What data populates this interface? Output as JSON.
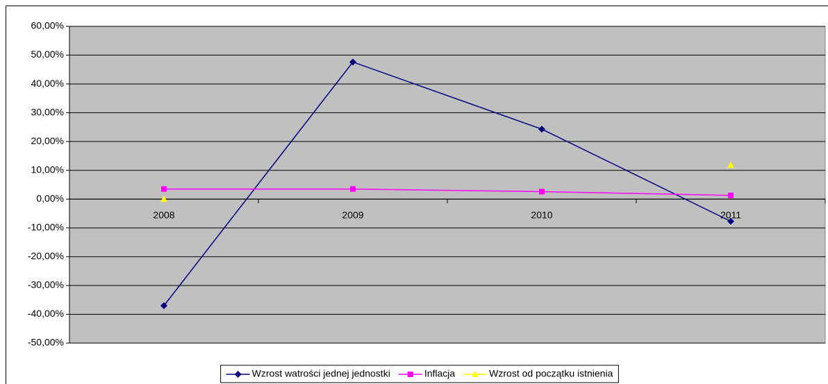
{
  "chart_data": {
    "type": "line",
    "categories": [
      "2008",
      "2009",
      "2010",
      "2011"
    ],
    "series": [
      {
        "name": "Wzrost watrości jednej jednostki",
        "color": "#000080",
        "marker": "diamond",
        "values": [
          -37,
          47.6,
          24.3,
          -7.7
        ]
      },
      {
        "name": "Inflacja",
        "color": "#ff00ff",
        "marker": "square",
        "values": [
          3.5,
          3.5,
          2.6,
          1.3
        ]
      },
      {
        "name": "Wzrost od początku istnienia",
        "color": "#ffff00",
        "marker": "triangle",
        "values": [
          0,
          null,
          null,
          11.8
        ]
      }
    ],
    "ylim": [
      -50,
      60
    ],
    "yticks": [
      {
        "value": -50,
        "label": "-50,00%"
      },
      {
        "value": -40,
        "label": "-40,00%"
      },
      {
        "value": -30,
        "label": "-30,00%"
      },
      {
        "value": -20,
        "label": "-20,00%"
      },
      {
        "value": -10,
        "label": "-10,00%"
      },
      {
        "value": 0,
        "label": "0,00%"
      },
      {
        "value": 10,
        "label": "10,00%"
      },
      {
        "value": 20,
        "label": "20,00%"
      },
      {
        "value": 30,
        "label": "30,00%"
      },
      {
        "value": 40,
        "label": "40,00%"
      },
      {
        "value": 50,
        "label": "50,00%"
      },
      {
        "value": 60,
        "label": "60,00%"
      }
    ],
    "grid": true,
    "legend": "bottom"
  }
}
